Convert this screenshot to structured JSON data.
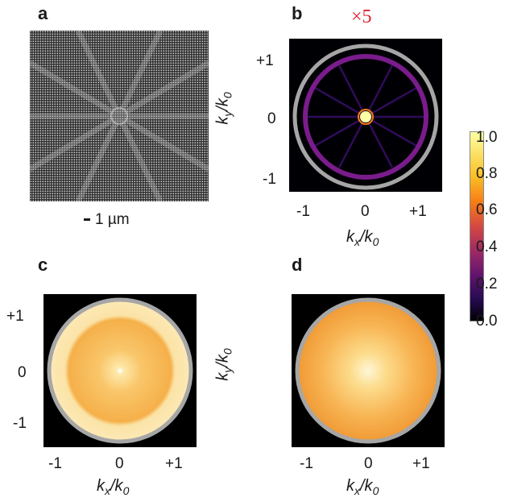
{
  "panels": {
    "a": {
      "label": "a"
    },
    "b": {
      "label": "b",
      "multiplier": "×5"
    },
    "c": {
      "label": "c"
    },
    "d": {
      "label": "d"
    }
  },
  "scale_bar": {
    "text": "1 µm"
  },
  "axes": {
    "x_label_main": "k",
    "x_label_sub_x": "x",
    "over": "/k",
    "sub_0": "0",
    "y_label_main": "k",
    "y_label_sub_y": "y",
    "ticks": [
      "-1",
      "0",
      "+1"
    ]
  },
  "colorbar": {
    "ticks": [
      "1.0",
      "0.8",
      "0.6",
      "0.4",
      "0.2",
      "0.0"
    ],
    "colormap": "inferno",
    "range": [
      0.0,
      1.0
    ]
  },
  "colors": {
    "ring": "#a6a6a6",
    "multiplier": "#e0242a"
  }
}
